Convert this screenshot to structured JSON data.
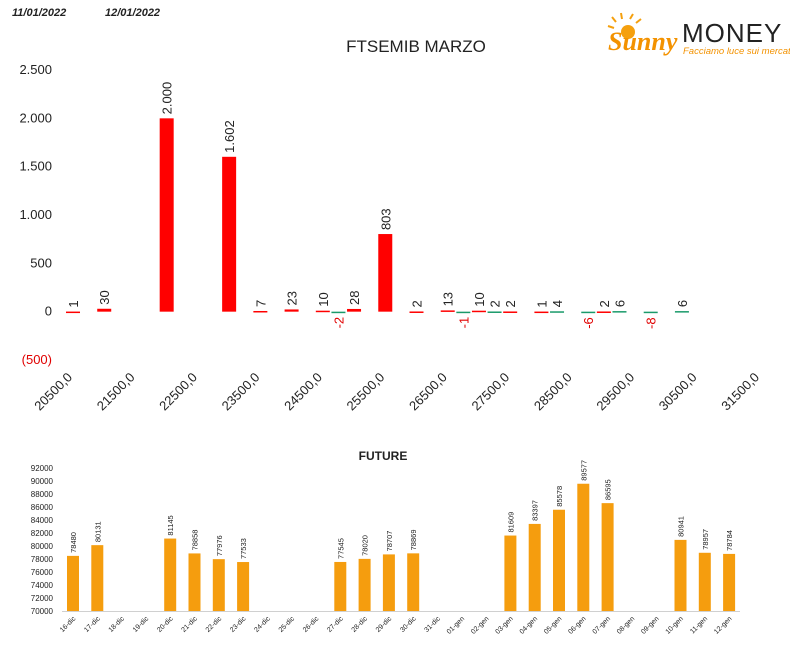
{
  "logo": {
    "brand": "Sunny",
    "name": "MONEY",
    "tagline": "Facciamo luce sui mercati"
  },
  "chart_data": [
    {
      "type": "bar",
      "title": "FTSEMIB MARZO",
      "xlim": [
        20500,
        31500
      ],
      "xticks": [
        {
          "value": 20500,
          "label": "20500,0"
        },
        {
          "value": 21500,
          "label": "21500,0"
        },
        {
          "value": 22500,
          "label": "22500,0"
        },
        {
          "value": 23500,
          "label": "23500,0"
        },
        {
          "value": 24500,
          "label": "24500,0"
        },
        {
          "value": 25500,
          "label": "25500,0"
        },
        {
          "value": 26500,
          "label": "26500,0"
        },
        {
          "value": 27500,
          "label": "27500,0"
        },
        {
          "value": 28500,
          "label": "28500,0"
        },
        {
          "value": 29500,
          "label": "29500,0"
        },
        {
          "value": 30500,
          "label": "30500,0"
        },
        {
          "value": 31500,
          "label": "31500,0"
        }
      ],
      "ylim": [
        -500,
        2500
      ],
      "yticks": [
        {
          "value": -500,
          "label": "(500)"
        },
        0,
        500,
        {
          "value": 1000,
          "label": "1.000"
        },
        {
          "value": 1500,
          "label": "1.500"
        },
        {
          "value": 2000,
          "label": "2.000"
        },
        {
          "value": 2500,
          "label": "2.500"
        }
      ],
      "negative_color": "#e00000",
      "series": [
        {
          "name": "11/01/2022",
          "color": "#ff0000",
          "x": [
            20500,
            21000,
            22000,
            23000,
            23500,
            24000,
            24500,
            25000,
            25500,
            26000,
            26500,
            27000,
            27500,
            28000,
            29000
          ],
          "values": [
            1,
            30,
            2000,
            1602,
            7,
            23,
            10,
            28,
            803,
            2,
            13,
            10,
            2,
            1,
            2
          ],
          "value_labels": [
            "1",
            "30",
            "2.000",
            "1.602",
            "7",
            "23",
            "10",
            "28",
            "803",
            "2",
            "13",
            "10",
            "2",
            "1",
            "2"
          ]
        },
        {
          "name": "12/01/2022",
          "color": "#1a9a6a",
          "x": [
            24750,
            26750,
            27250,
            28250,
            28750,
            29250,
            29750,
            30250
          ],
          "values": [
            -2,
            -1,
            2,
            4,
            -6,
            6,
            -8,
            6
          ]
        }
      ]
    },
    {
      "type": "bar",
      "title": "FUTURE",
      "color": "#f59d0e",
      "categories": [
        "16-dic",
        "17-dic",
        "18-dic",
        "19-dic",
        "20-dic",
        "21-dic",
        "22-dic",
        "23-dic",
        "24-dic",
        "25-dic",
        "26-dic",
        "27-dic",
        "28-dic",
        "29-dic",
        "30-dic",
        "31-dic",
        "01-gen",
        "02-gen",
        "03-gen",
        "04-gen",
        "05-gen",
        "06-gen",
        "07-gen",
        "08-gen",
        "09-gen",
        "10-gen",
        "11-gen",
        "12-gen"
      ],
      "values": [
        78480,
        80131,
        null,
        null,
        81145,
        78858,
        77976,
        77533,
        null,
        null,
        null,
        77545,
        78020,
        78707,
        78869,
        null,
        null,
        null,
        81609,
        83397,
        85578,
        89577,
        86595,
        null,
        null,
        80941,
        78957,
        78784
      ],
      "ylim": [
        70000,
        92000
      ],
      "yticks": [
        70000,
        72000,
        74000,
        76000,
        78000,
        80000,
        82000,
        84000,
        86000,
        88000,
        90000,
        92000
      ]
    }
  ]
}
